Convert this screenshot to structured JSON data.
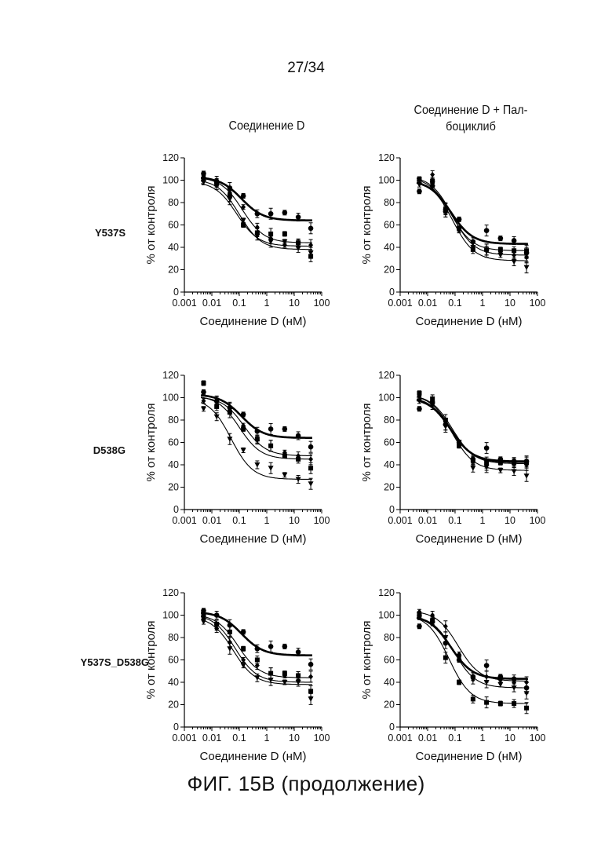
{
  "page": {
    "page_number": "27/34",
    "column_titles": [
      "Соединение D",
      "Соединение D + Пал-",
      "боциклиб"
    ],
    "row_labels": [
      "Y537S",
      "D538G",
      "Y537S_D538G"
    ],
    "figure_caption": "ФИГ. 15В (продолжение)"
  },
  "chart_data": [
    {
      "type": "scatter",
      "row": "Y537S",
      "column": "Соединение D",
      "xlabel": "Соединение D (нМ)",
      "ylabel": "% от контроля",
      "xscale": "log",
      "xlim": [
        0.001,
        100
      ],
      "ylim": [
        0,
        120
      ],
      "xticks": [
        "0.001",
        "0.01",
        "0.1",
        "1",
        "10",
        "100"
      ],
      "yticks": [
        0,
        20,
        40,
        60,
        80,
        100,
        120
      ],
      "x": [
        0.005,
        0.015,
        0.045,
        0.14,
        0.45,
        1.4,
        4.5,
        14,
        40
      ],
      "series": [
        {
          "marker": "circle",
          "values": [
            106,
            98,
            93,
            86,
            70,
            70,
            71,
            67,
            57
          ],
          "fit": {
            "top": 103,
            "bottom": 64,
            "ec50": 0.12
          },
          "line": "bold"
        },
        {
          "marker": "square",
          "values": [
            101,
            97,
            86,
            60,
            53,
            52,
            52,
            44,
            32
          ],
          "fit": {
            "top": 101,
            "bottom": 38,
            "ec50": 0.1
          },
          "line": "normal"
        },
        {
          "marker": "triangle-down",
          "values": [
            98,
            95,
            83,
            64,
            50,
            45,
            45,
            39,
            35
          ],
          "fit": {
            "top": 99,
            "bottom": 41,
            "ec50": 0.08
          },
          "line": "normal"
        },
        {
          "marker": "diamond",
          "values": [
            104,
            100,
            89,
            76,
            58,
            48,
            42,
            43,
            42
          ],
          "fit": {
            "top": 103,
            "bottom": 44,
            "ec50": 0.13
          },
          "line": "normal"
        }
      ]
    },
    {
      "type": "scatter",
      "row": "Y537S",
      "column": "Соединение D + Палбоциклиб",
      "xlabel": "Соединение D (нМ)",
      "ylabel": "% от контроля",
      "xscale": "log",
      "xlim": [
        0.001,
        100
      ],
      "ylim": [
        0,
        120
      ],
      "xticks": [
        "0.001",
        "0.01",
        "0.1",
        "1",
        "10",
        "100"
      ],
      "yticks": [
        0,
        20,
        40,
        60,
        80,
        100,
        120
      ],
      "x": [
        0.005,
        0.015,
        0.045,
        0.14,
        0.45,
        1.4,
        4.5,
        14,
        40
      ],
      "series": [
        {
          "marker": "circle",
          "values": [
            90,
            95,
            72,
            65,
            45,
            55,
            48,
            46,
            35
          ],
          "fit": {
            "top": 100,
            "bottom": 43,
            "ec50": 0.07
          },
          "line": "bold"
        },
        {
          "marker": "square",
          "values": [
            101,
            99,
            74,
            57,
            38,
            38,
            38,
            37,
            37
          ],
          "fit": {
            "top": 103,
            "bottom": 37,
            "ec50": 0.07
          },
          "line": "normal"
        },
        {
          "marker": "triangle-down",
          "values": [
            96,
            97,
            72,
            55,
            40,
            36,
            33,
            27,
            22
          ],
          "fit": {
            "top": 101,
            "bottom": 28,
            "ec50": 0.08
          },
          "line": "normal"
        },
        {
          "marker": "diamond",
          "values": [
            100,
            105,
            75,
            56,
            41,
            38,
            36,
            33,
            31
          ],
          "fit": {
            "top": 104,
            "bottom": 33,
            "ec50": 0.08
          },
          "line": "normal"
        }
      ]
    },
    {
      "type": "scatter",
      "row": "D538G",
      "column": "Соединение D",
      "xlabel": "Соединение D (нМ)",
      "ylabel": "% от контроля",
      "xscale": "log",
      "xlim": [
        0.001,
        100
      ],
      "ylim": [
        0,
        120
      ],
      "xticks": [
        "0.001",
        "0.01",
        "0.1",
        "1",
        "10",
        "100"
      ],
      "yticks": [
        0,
        20,
        40,
        60,
        80,
        100,
        120
      ],
      "x": [
        0.005,
        0.015,
        0.045,
        0.14,
        0.45,
        1.4,
        4.5,
        14,
        40
      ],
      "series": [
        {
          "marker": "circle",
          "values": [
            105,
            97,
            91,
            85,
            70,
            72,
            72,
            66,
            56
          ],
          "fit": {
            "top": 103,
            "bottom": 64,
            "ec50": 0.12
          },
          "line": "bold"
        },
        {
          "marker": "square",
          "values": [
            113,
            92,
            87,
            72,
            63,
            57,
            48,
            45,
            37
          ],
          "fit": {
            "top": 102,
            "bottom": 45,
            "ec50": 0.1
          },
          "line": "normal"
        },
        {
          "marker": "triangle-down",
          "values": [
            90,
            83,
            63,
            53,
            40,
            37,
            31,
            27,
            23
          ],
          "fit": {
            "top": 100,
            "bottom": 27,
            "ec50": 0.05
          },
          "line": "normal"
        },
        {
          "marker": "diamond",
          "values": [
            97,
            98,
            90,
            75,
            62,
            57,
            51,
            48,
            45
          ],
          "fit": {
            "top": 101,
            "bottom": 48,
            "ec50": 0.15
          },
          "line": "normal"
        }
      ]
    },
    {
      "type": "scatter",
      "row": "D538G",
      "column": "Соединение D + Палбоциклиб",
      "xlabel": "Соединение D (нМ)",
      "ylabel": "% от контроля",
      "xscale": "log",
      "xlim": [
        0.001,
        100
      ],
      "ylim": [
        0,
        120
      ],
      "xticks": [
        "0.001",
        "0.01",
        "0.1",
        "1",
        "10",
        "100"
      ],
      "yticks": [
        0,
        20,
        40,
        60,
        80,
        100,
        120
      ],
      "x": [
        0.005,
        0.015,
        0.045,
        0.14,
        0.45,
        1.4,
        4.5,
        14,
        40
      ],
      "series": [
        {
          "marker": "circle",
          "values": [
            90,
            96,
            76,
            60,
            45,
            55,
            45,
            43,
            43
          ],
          "fit": {
            "top": 100,
            "bottom": 43,
            "ec50": 0.07
          },
          "line": "bold"
        },
        {
          "marker": "square",
          "values": [
            104,
            99,
            80,
            57,
            44,
            42,
            42,
            42,
            42
          ],
          "fit": {
            "top": 103,
            "bottom": 42,
            "ec50": 0.07
          },
          "line": "normal"
        },
        {
          "marker": "triangle-down",
          "values": [
            97,
            93,
            74,
            60,
            37,
            38,
            35,
            34,
            30
          ],
          "fit": {
            "top": 101,
            "bottom": 35,
            "ec50": 0.08
          },
          "line": "normal"
        },
        {
          "marker": "diamond",
          "values": [
            101,
            97,
            76,
            58,
            43,
            40,
            42,
            41,
            40
          ],
          "fit": {
            "top": 103,
            "bottom": 41,
            "ec50": 0.08
          },
          "line": "normal"
        }
      ]
    },
    {
      "type": "scatter",
      "row": "Y537S_D538G",
      "column": "Соединение D",
      "xlabel": "Соединение D (нМ)",
      "ylabel": "% от контроля",
      "xscale": "log",
      "xlim": [
        0.001,
        100
      ],
      "ylim": [
        0,
        120
      ],
      "xticks": [
        "0.001",
        "0.01",
        "0.1",
        "1",
        "10",
        "100"
      ],
      "yticks": [
        0,
        20,
        40,
        60,
        80,
        100,
        120
      ],
      "x": [
        0.005,
        0.015,
        0.045,
        0.14,
        0.45,
        1.4,
        4.5,
        14,
        40
      ],
      "series": [
        {
          "marker": "circle",
          "values": [
            104,
            100,
            91,
            85,
            70,
            72,
            72,
            67,
            56
          ],
          "fit": {
            "top": 103,
            "bottom": 64,
            "ec50": 0.12
          },
          "line": "bold"
        },
        {
          "marker": "square",
          "values": [
            100,
            92,
            85,
            70,
            60,
            48,
            48,
            46,
            32
          ],
          "fit": {
            "top": 101,
            "bottom": 44,
            "ec50": 0.09
          },
          "line": "normal"
        },
        {
          "marker": "triangle-down",
          "values": [
            94,
            90,
            70,
            55,
            44,
            42,
            40,
            40,
            25
          ],
          "fit": {
            "top": 99,
            "bottom": 38,
            "ec50": 0.06
          },
          "line": "normal"
        },
        {
          "marker": "diamond",
          "values": [
            97,
            88,
            76,
            60,
            55,
            48,
            46,
            46,
            45
          ],
          "fit": {
            "top": 101,
            "bottom": 40,
            "ec50": 0.07
          },
          "line": "normal"
        }
      ]
    },
    {
      "type": "scatter",
      "row": "Y537S_D538G",
      "column": "Соединение D + Палбоциклиб",
      "xlabel": "Соединение D (нМ)",
      "ylabel": "% от контроля",
      "xscale": "log",
      "xlim": [
        0.001,
        100
      ],
      "ylim": [
        0,
        120
      ],
      "xticks": [
        "0.001",
        "0.01",
        "0.1",
        "1",
        "10",
        "100"
      ],
      "yticks": [
        0,
        20,
        40,
        60,
        80,
        100,
        120
      ],
      "x": [
        0.005,
        0.015,
        0.045,
        0.14,
        0.45,
        1.4,
        4.5,
        14,
        40
      ],
      "series": [
        {
          "marker": "circle",
          "values": [
            90,
            94,
            75,
            60,
            45,
            55,
            45,
            43,
            35
          ],
          "fit": {
            "top": 100,
            "bottom": 43,
            "ec50": 0.07
          },
          "line": "bold"
        },
        {
          "marker": "square",
          "values": [
            100,
            95,
            62,
            40,
            25,
            22,
            21,
            21,
            17
          ],
          "fit": {
            "top": 101,
            "bottom": 21,
            "ec50": 0.06
          },
          "line": "normal"
        },
        {
          "marker": "triangle-down",
          "values": [
            98,
            95,
            80,
            62,
            42,
            40,
            38,
            35,
            30
          ],
          "fit": {
            "top": 100,
            "bottom": 35,
            "ec50": 0.09
          },
          "line": "normal"
        },
        {
          "marker": "diamond",
          "values": [
            103,
            100,
            90,
            65,
            45,
            45,
            42,
            40,
            40
          ],
          "fit": {
            "top": 104,
            "bottom": 41,
            "ec50": 0.13
          },
          "line": "normal"
        }
      ]
    }
  ]
}
